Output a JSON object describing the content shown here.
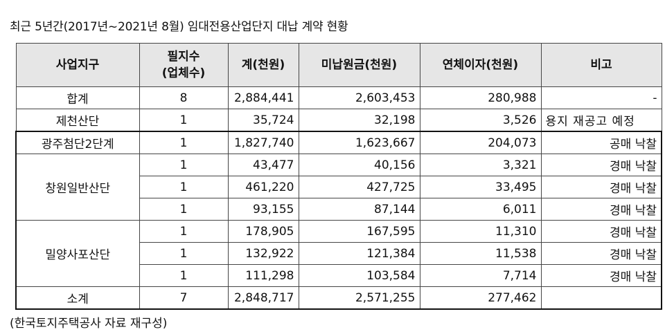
{
  "title": "최근 5년간(2017년~2021년 8월) 임대전용산업단지 대납 계약 현황",
  "source": "(한국토지주택공사 자료 재구성)",
  "table": {
    "headers": [
      "사업지구",
      "필지수\n(업체수)",
      "계(천원)",
      "미납원금(천원)",
      "연체이자(천원)",
      "비고"
    ],
    "rows": [
      {
        "district": "합계",
        "parcels": "8",
        "total": "2,884,441",
        "principal": "2,603,453",
        "interest": "280,988",
        "note": "-"
      },
      {
        "district": "제천산단",
        "parcels": "1",
        "total": "35,724",
        "principal": "32,198",
        "interest": "3,526",
        "note": "용지 재공고 예정"
      },
      {
        "district": "광주첨단2단계",
        "parcels": "1",
        "total": "1,827,740",
        "principal": "1,623,667",
        "interest": "204,073",
        "note": "공매 낙찰"
      },
      {
        "district": "창원일반산단",
        "parcels": "1",
        "total": "43,477",
        "principal": "40,156",
        "interest": "3,321",
        "note": "경매 낙찰"
      },
      {
        "district": "",
        "parcels": "1",
        "total": "461,220",
        "principal": "427,725",
        "interest": "33,495",
        "note": "경매 낙찰"
      },
      {
        "district": "",
        "parcels": "1",
        "total": "93,155",
        "principal": "87,144",
        "interest": "6,011",
        "note": "경매 낙찰"
      },
      {
        "district": "밀양사포산단",
        "parcels": "1",
        "total": "178,905",
        "principal": "167,595",
        "interest": "11,310",
        "note": "경매 낙찰"
      },
      {
        "district": "",
        "parcels": "1",
        "total": "132,922",
        "principal": "121,384",
        "interest": "11,538",
        "note": "경매 낙찰"
      },
      {
        "district": "",
        "parcels": "1",
        "total": "111,298",
        "principal": "103,584",
        "interest": "7,714",
        "note": "경매 낙찰"
      },
      {
        "district": "소계",
        "parcels": "7",
        "total": "2,848,717",
        "principal": "2,571,255",
        "interest": "277,462",
        "note": ""
      }
    ]
  }
}
